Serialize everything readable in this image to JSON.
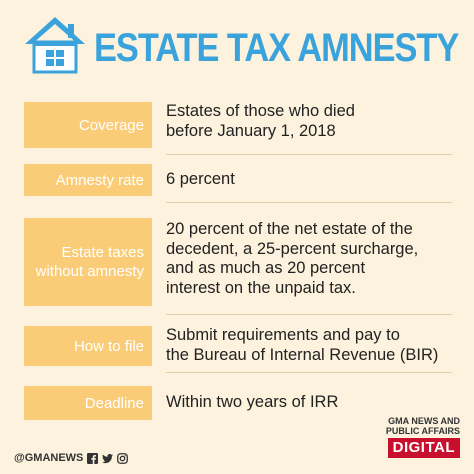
{
  "header": {
    "title": "ESTATE TAX AMNESTY",
    "icon": "house-icon"
  },
  "rows": [
    {
      "label": "Coverage",
      "value_lines": [
        "Estates of those who died",
        "before January 1, 2018"
      ]
    },
    {
      "label": "Amnesty rate",
      "value_lines": [
        "6 percent"
      ]
    },
    {
      "label_lines": [
        "Estate taxes",
        "without amnesty"
      ],
      "value_lines": [
        "20 percent of the net estate of the",
        "decedent, a 25-percent surcharge,",
        "and as much as 20 percent",
        "interest on the unpaid tax."
      ]
    },
    {
      "label": "How to file",
      "value_lines": [
        "Submit requirements and pay to",
        "the Bureau of Internal Revenue (BIR)"
      ]
    },
    {
      "label": "Deadline",
      "value_lines": [
        "Within two years of IRR"
      ]
    }
  ],
  "footer": {
    "handle": "@GMANEWS",
    "social_icons": [
      "facebook-icon",
      "twitter-icon",
      "instagram-icon"
    ],
    "brand_top": "GMA NEWS AND",
    "brand_mid": "PUBLIC AFFAIRS",
    "brand_bottom": "DIGITAL"
  },
  "colors": {
    "background": "#fcf2dd",
    "title": "#3aa3dc",
    "label_box": "#fbcc77",
    "brand_red": "#c8102e"
  }
}
